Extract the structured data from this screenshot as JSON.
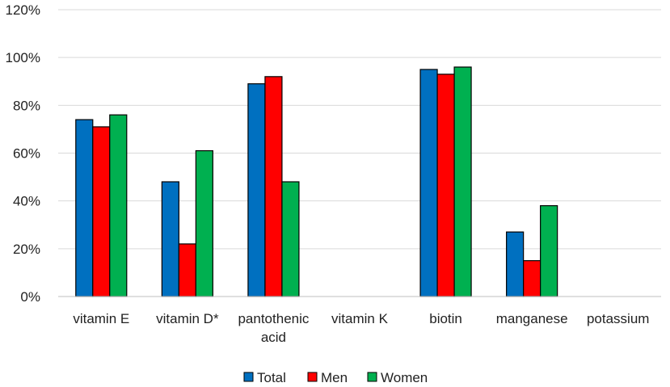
{
  "chart_data": {
    "type": "bar",
    "title": "",
    "xlabel": "",
    "ylabel": "",
    "ylim": [
      0,
      120
    ],
    "yticks": [
      0,
      20,
      40,
      60,
      80,
      100,
      120
    ],
    "ytick_labels": [
      "0%",
      "20%",
      "40%",
      "60%",
      "80%",
      "100%",
      "120%"
    ],
    "grid": true,
    "legend_position": "bottom",
    "categories": [
      [
        "vitamin E"
      ],
      [
        "vitamin D*"
      ],
      [
        "pantothenic",
        "acid"
      ],
      [
        "vitamin K"
      ],
      [
        "biotin"
      ],
      [
        "manganese"
      ],
      [
        "potassium"
      ]
    ],
    "series": [
      {
        "name": "Total",
        "color": "#0070C0",
        "values": [
          74,
          48,
          89,
          null,
          95,
          27,
          null
        ]
      },
      {
        "name": "Men",
        "color": "#FF0000",
        "values": [
          71,
          22,
          92,
          null,
          93,
          15,
          null
        ]
      },
      {
        "name": "Women",
        "color": "#00B050",
        "values": [
          76,
          61,
          48,
          null,
          96,
          38,
          null
        ]
      }
    ]
  }
}
